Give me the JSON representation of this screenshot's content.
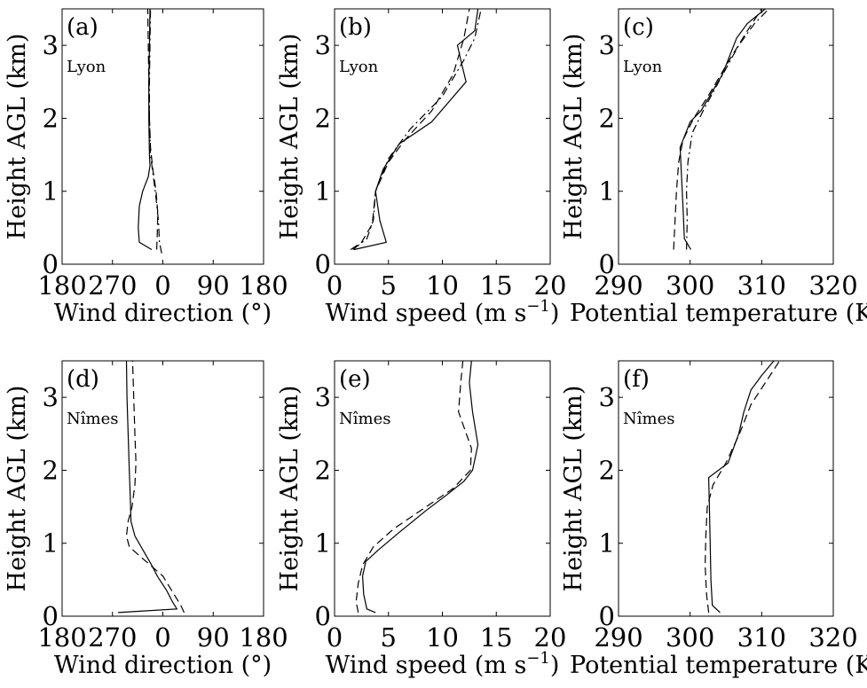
{
  "chart_data": [
    {
      "type": "line",
      "panel": "(a)",
      "station": "Lyon",
      "xlabel": "Wind direction (°)",
      "ylabel": "Height AGL (km)",
      "xticks": [
        "180",
        "270",
        "0",
        "90",
        "180"
      ],
      "yticks": [
        "0",
        "1",
        "2",
        "3"
      ],
      "xlim": [
        180,
        540
      ],
      "ylim": [
        0,
        3.5
      ],
      "series": [
        {
          "style": "solid",
          "points": [
            [
              340,
              0.2
            ],
            [
              318,
              0.3
            ],
            [
              316,
              0.5
            ],
            [
              318,
              0.8
            ],
            [
              324,
              1.0
            ],
            [
              334,
              1.2
            ],
            [
              337,
              1.35
            ],
            [
              336,
              1.5
            ],
            [
              335,
              2.0
            ],
            [
              335,
              2.5
            ],
            [
              336,
              3.0
            ],
            [
              337,
              3.5
            ]
          ]
        },
        {
          "style": "dashed",
          "points": [
            [
              349,
              0.2
            ],
            [
              350,
              0.4
            ],
            [
              351,
              0.7
            ],
            [
              348,
              1.0
            ],
            [
              342,
              1.3
            ],
            [
              338,
              1.6
            ],
            [
              336,
              2.0
            ],
            [
              335,
              2.5
            ],
            [
              334,
              3.0
            ],
            [
              333,
              3.5
            ]
          ]
        },
        {
          "style": "dashdot",
          "points": [
            [
              358,
              0.15
            ],
            [
              354,
              0.3
            ],
            [
              352,
              0.6
            ],
            [
              348,
              0.9
            ],
            [
              343,
              1.2
            ],
            [
              338,
              1.5
            ],
            [
              336,
              2.0
            ],
            [
              336,
              2.5
            ],
            [
              337,
              3.0
            ],
            [
              338,
              3.5
            ]
          ]
        }
      ]
    },
    {
      "type": "line",
      "panel": "(b)",
      "station": "Lyon",
      "xlabel": "Wind speed (m s",
      "xlabel_sup": "−1",
      "xlabel_end": ")",
      "ylabel": "Height AGL (km)",
      "xticks": [
        "0",
        "5",
        "10",
        "15",
        "20"
      ],
      "yticks": [
        "0",
        "1",
        "2",
        "3"
      ],
      "xlim": [
        0,
        20
      ],
      "ylim": [
        0,
        3.5
      ],
      "series": [
        {
          "style": "solid",
          "points": [
            [
              1.8,
              0.2
            ],
            [
              4.8,
              0.3
            ],
            [
              4.2,
              0.6
            ],
            [
              3.8,
              1.0
            ],
            [
              4.5,
              1.3
            ],
            [
              6.0,
              1.65
            ],
            [
              9.0,
              1.95
            ],
            [
              12.2,
              2.5
            ],
            [
              11.7,
              2.8
            ],
            [
              11.4,
              3.0
            ],
            [
              13.0,
              3.2
            ],
            [
              13.3,
              3.5
            ]
          ]
        },
        {
          "style": "dashed",
          "points": [
            [
              1.5,
              0.2
            ],
            [
              2.5,
              0.3
            ],
            [
              3.5,
              0.55
            ],
            [
              3.8,
              1.0
            ],
            [
              5.0,
              1.4
            ],
            [
              6.5,
              1.7
            ],
            [
              9.0,
              2.1
            ],
            [
              11.0,
              2.6
            ],
            [
              12.0,
              3.1
            ],
            [
              12.5,
              3.5
            ]
          ]
        },
        {
          "style": "dashdot",
          "points": [
            [
              1.7,
              0.2
            ],
            [
              3.0,
              0.35
            ],
            [
              3.6,
              0.6
            ],
            [
              3.8,
              1.0
            ],
            [
              5.0,
              1.45
            ],
            [
              7.0,
              1.85
            ],
            [
              10.0,
              2.3
            ],
            [
              12.0,
              2.8
            ],
            [
              13.0,
              3.1
            ],
            [
              13.6,
              3.5
            ]
          ]
        }
      ]
    },
    {
      "type": "line",
      "panel": "(c)",
      "station": "Lyon",
      "xlabel": "Potential temperature (K)",
      "ylabel": "Height AGL (km)",
      "xticks": [
        "290",
        "300",
        "310",
        "320"
      ],
      "yticks": [
        "0",
        "1",
        "2",
        "3"
      ],
      "xlim": [
        290,
        320
      ],
      "ylim": [
        0,
        3.5
      ],
      "series": [
        {
          "style": "solid",
          "points": [
            [
              300.1,
              0.2
            ],
            [
              299.2,
              0.35
            ],
            [
              299.0,
              0.8
            ],
            [
              298.8,
              1.2
            ],
            [
              298.6,
              1.6
            ],
            [
              300.0,
              1.95
            ],
            [
              301.5,
              2.1
            ],
            [
              304.5,
              2.6
            ],
            [
              306.5,
              3.1
            ],
            [
              308.0,
              3.3
            ],
            [
              310.5,
              3.5
            ]
          ]
        },
        {
          "style": "dashed",
          "points": [
            [
              297.7,
              0.2
            ],
            [
              297.9,
              0.6
            ],
            [
              298.1,
              1.0
            ],
            [
              298.4,
              1.4
            ],
            [
              299.0,
              1.7
            ],
            [
              300.5,
              2.0
            ],
            [
              302.5,
              2.3
            ],
            [
              305.5,
              2.8
            ],
            [
              308.0,
              3.2
            ],
            [
              310.0,
              3.5
            ]
          ]
        },
        {
          "style": "dashdot",
          "points": [
            [
              299.5,
              0.2
            ],
            [
              299.6,
              0.6
            ],
            [
              299.5,
              1.0
            ],
            [
              299.7,
              1.4
            ],
            [
              300.3,
              1.8
            ],
            [
              301.8,
              2.1
            ],
            [
              304.0,
              2.5
            ],
            [
              306.8,
              3.0
            ],
            [
              309.0,
              3.3
            ],
            [
              311.0,
              3.5
            ]
          ]
        }
      ]
    },
    {
      "type": "line",
      "panel": "(d)",
      "station": "Nîmes",
      "xlabel": "Wind direction (°)",
      "ylabel": "Height AGL (km)",
      "xticks": [
        "180",
        "270",
        "0",
        "90",
        "180"
      ],
      "yticks": [
        "0",
        "1",
        "2",
        "3"
      ],
      "xlim": [
        180,
        540
      ],
      "ylim": [
        0,
        3.5
      ],
      "series": [
        {
          "style": "solid",
          "points": [
            [
              280,
              0.05
            ],
            [
              385,
              0.1
            ],
            [
              377,
              0.2
            ],
            [
              367,
              0.35
            ],
            [
              350,
              0.55
            ],
            [
              340,
              0.7
            ],
            [
              325,
              0.9
            ],
            [
              310,
              1.1
            ],
            [
              303,
              1.3
            ],
            [
              302,
              1.6
            ],
            [
              300,
              2.0
            ],
            [
              298,
              2.5
            ],
            [
              296,
              3.0
            ],
            [
              295,
              3.5
            ]
          ]
        },
        {
          "style": "dashed",
          "points": [
            [
              398,
              0.05
            ],
            [
              392,
              0.15
            ],
            [
              380,
              0.3
            ],
            [
              360,
              0.55
            ],
            [
              330,
              0.75
            ],
            [
              300,
              0.95
            ],
            [
              295,
              1.1
            ],
            [
              298,
              1.3
            ],
            [
              305,
              1.5
            ],
            [
              310,
              1.8
            ],
            [
              312,
              2.1
            ],
            [
              310,
              2.5
            ],
            [
              308,
              3.0
            ],
            [
              306,
              3.5
            ]
          ]
        }
      ]
    },
    {
      "type": "line",
      "panel": "(e)",
      "station": "Nîmes",
      "xlabel": "Wind speed (m s",
      "xlabel_sup": "−1",
      "xlabel_end": ")",
      "ylabel": "Height AGL (km)",
      "xticks": [
        "0",
        "5",
        "10",
        "15",
        "20"
      ],
      "yticks": [
        "0",
        "1",
        "2",
        "3"
      ],
      "xlim": [
        0,
        20
      ],
      "ylim": [
        0,
        3.5
      ],
      "series": [
        {
          "style": "solid",
          "points": [
            [
              3.8,
              0.05
            ],
            [
              3.0,
              0.1
            ],
            [
              2.7,
              0.3
            ],
            [
              2.6,
              0.55
            ],
            [
              2.9,
              0.75
            ],
            [
              4.0,
              0.9
            ],
            [
              6.0,
              1.15
            ],
            [
              8.5,
              1.45
            ],
            [
              10.3,
              1.65
            ],
            [
              12.0,
              1.85
            ],
            [
              12.8,
              2.0
            ],
            [
              13.3,
              2.35
            ],
            [
              12.8,
              2.8
            ],
            [
              12.5,
              3.2
            ],
            [
              12.7,
              3.5
            ]
          ]
        },
        {
          "style": "dashed",
          "points": [
            [
              2.2,
              0.05
            ],
            [
              2.0,
              0.2
            ],
            [
              2.2,
              0.45
            ],
            [
              2.6,
              0.7
            ],
            [
              3.6,
              0.95
            ],
            [
              5.5,
              1.2
            ],
            [
              8.0,
              1.45
            ],
            [
              11.0,
              1.75
            ],
            [
              12.6,
              2.0
            ],
            [
              12.7,
              2.3
            ],
            [
              11.5,
              2.8
            ],
            [
              11.7,
              3.2
            ],
            [
              11.9,
              3.5
            ]
          ]
        }
      ]
    },
    {
      "type": "line",
      "panel": "(f)",
      "station": "Nîmes",
      "xlabel": "Potential temperature (K)",
      "ylabel": "Height AGL (km)",
      "xticks": [
        "290",
        "300",
        "310",
        "320"
      ],
      "yticks": [
        "0",
        "1",
        "2",
        "3"
      ],
      "xlim": [
        290,
        320
      ],
      "ylim": [
        0,
        3.5
      ],
      "series": [
        {
          "style": "solid",
          "points": [
            [
              304.2,
              0.05
            ],
            [
              303.1,
              0.15
            ],
            [
              302.9,
              0.5
            ],
            [
              302.8,
              1.0
            ],
            [
              302.7,
              1.5
            ],
            [
              302.6,
              1.9
            ],
            [
              305.3,
              2.1
            ],
            [
              306.8,
              2.5
            ],
            [
              307.5,
              2.8
            ],
            [
              308.5,
              3.1
            ],
            [
              310.0,
              3.3
            ],
            [
              311.7,
              3.5
            ]
          ]
        },
        {
          "style": "dashed",
          "points": [
            [
              302.6,
              0.05
            ],
            [
              302.3,
              0.3
            ],
            [
              302.1,
              0.7
            ],
            [
              302.2,
              1.1
            ],
            [
              302.4,
              1.5
            ],
            [
              303.2,
              1.8
            ],
            [
              305.0,
              2.1
            ],
            [
              306.9,
              2.5
            ],
            [
              308.5,
              2.9
            ],
            [
              310.5,
              3.2
            ],
            [
              312.5,
              3.5
            ]
          ]
        }
      ]
    }
  ]
}
